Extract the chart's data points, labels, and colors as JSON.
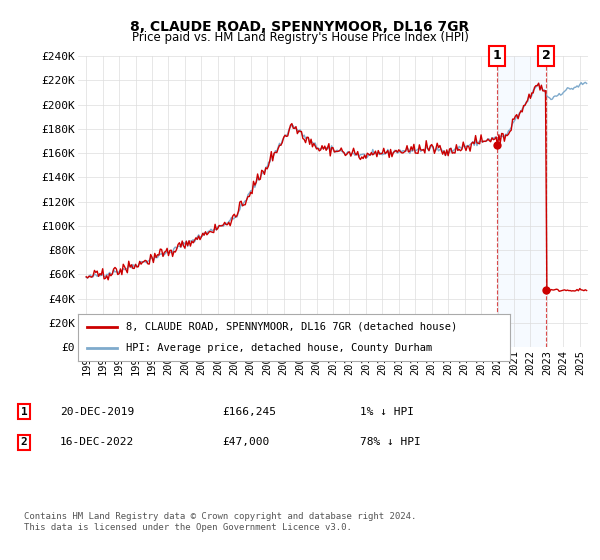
{
  "title": "8, CLAUDE ROAD, SPENNYMOOR, DL16 7GR",
  "subtitle": "Price paid vs. HM Land Registry's House Price Index (HPI)",
  "ylabel_ticks": [
    "£0",
    "£20K",
    "£40K",
    "£60K",
    "£80K",
    "£100K",
    "£120K",
    "£140K",
    "£160K",
    "£180K",
    "£200K",
    "£220K",
    "£240K"
  ],
  "ytick_values": [
    0,
    20000,
    40000,
    60000,
    80000,
    100000,
    120000,
    140000,
    160000,
    180000,
    200000,
    220000,
    240000
  ],
  "ylim": [
    0,
    240000
  ],
  "xlim_start": 1994.5,
  "xlim_end": 2025.5,
  "hpi_color": "#7faacc",
  "price_color": "#cc0000",
  "shade_color": "#ddeeff",
  "marker1_year": 2019.96,
  "marker1_value": 166245,
  "marker2_year": 2022.96,
  "marker2_value": 47000,
  "legend_label1": "8, CLAUDE ROAD, SPENNYMOOR, DL16 7GR (detached house)",
  "legend_label2": "HPI: Average price, detached house, County Durham",
  "annotation1_date": "20-DEC-2019",
  "annotation1_price": "£166,245",
  "annotation1_pct": "1% ↓ HPI",
  "annotation2_date": "16-DEC-2022",
  "annotation2_price": "£47,000",
  "annotation2_pct": "78% ↓ HPI",
  "footer": "Contains HM Land Registry data © Crown copyright and database right 2024.\nThis data is licensed under the Open Government Licence v3.0.",
  "bg_color": "#ffffff",
  "grid_color": "#dddddd"
}
